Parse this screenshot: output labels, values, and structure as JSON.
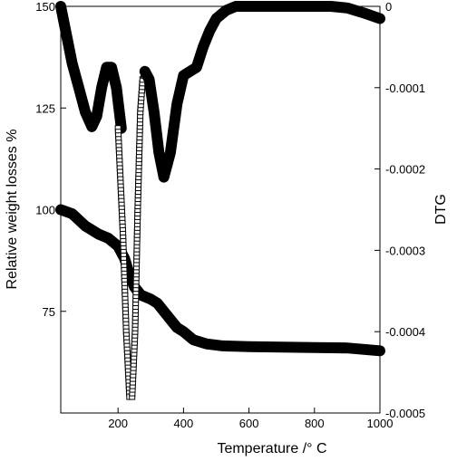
{
  "chart_data": {
    "type": "line",
    "xlabel": "Temperature /° C",
    "ylabel_left": "Relative weight losses %",
    "ylabel_right": "DTG",
    "xlim": [
      25,
      1000
    ],
    "ylim_left": [
      50,
      150
    ],
    "ylim_right": [
      -0.0005,
      0
    ],
    "x_ticks": [
      200,
      400,
      600,
      800,
      1000
    ],
    "y_left_ticks": [
      75,
      100,
      125,
      150
    ],
    "y_right_ticks": [
      {
        "value": 0,
        "label": "0"
      },
      {
        "value": -0.0001,
        "label": "-0.0001"
      },
      {
        "value": -0.0002,
        "label": "-0.0002"
      },
      {
        "value": -0.0003,
        "label": "-0.0003"
      },
      {
        "value": -0.0004,
        "label": "-0.0004"
      },
      {
        "value": -0.0005,
        "label": "-0.0005"
      }
    ],
    "grid": false,
    "legend": "none",
    "series": [
      {
        "axis": "left",
        "color": "#000000",
        "style": "filled-circles",
        "x": [
          25,
          60,
          100,
          140,
          170,
          200,
          220,
          235,
          250,
          270,
          300,
          320,
          340,
          360,
          380,
          400,
          430,
          470,
          520,
          600,
          700,
          800,
          900,
          1000
        ],
        "y": [
          100,
          99,
          96,
          94,
          93,
          91,
          88,
          84,
          81,
          79,
          78,
          77,
          75,
          73,
          71,
          70,
          68,
          67,
          66.5,
          66.3,
          66.2,
          66.1,
          66,
          65.3
        ]
      },
      {
        "axis": "right",
        "color": "#000000",
        "style": "filled-circles",
        "x": [
          25,
          40,
          60,
          80,
          100,
          120,
          135,
          150,
          165,
          180,
          195,
          210
        ],
        "y": [
          0,
          -3e-05,
          -7e-05,
          -0.0001,
          -0.00013,
          -0.000148,
          -0.000135,
          -0.0001,
          -7.5e-05,
          -7.5e-05,
          -0.0001,
          -0.00015
        ]
      },
      {
        "axis": "right",
        "color": "#000000",
        "style": "open-squares",
        "x": [
          200,
          215,
          225,
          235,
          243,
          252,
          260,
          268,
          275,
          282
        ],
        "y": [
          -0.00015,
          -0.00028,
          -0.0004,
          -0.00048,
          -0.00048,
          -0.0004,
          -0.00025,
          -0.00013,
          -9e-05,
          -8e-05
        ]
      },
      {
        "axis": "right",
        "color": "#000000",
        "style": "filled-circles",
        "x": [
          282,
          295,
          310,
          325,
          340,
          360,
          380,
          400,
          420,
          440,
          460,
          480,
          500,
          530,
          560,
          600,
          650,
          700,
          750,
          800,
          850,
          900,
          950,
          1000
        ],
        "y": [
          -8e-05,
          -9e-05,
          -0.00013,
          -0.00018,
          -0.00021,
          -0.00018,
          -0.00012,
          -8.5e-05,
          -8e-05,
          -7.5e-05,
          -5e-05,
          -3e-05,
          -1.5e-05,
          -5e-06,
          0,
          0,
          0,
          0,
          0,
          0,
          0,
          -2e-06,
          -8e-06,
          -1.5e-05
        ]
      }
    ]
  }
}
